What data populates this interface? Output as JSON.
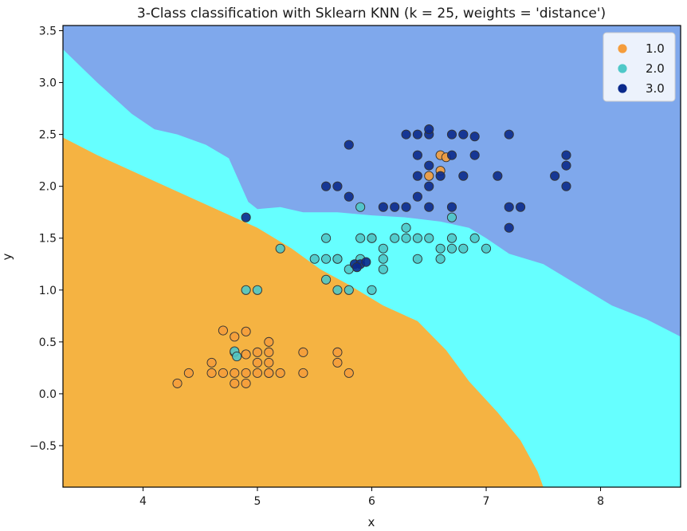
{
  "chart_data": {
    "type": "scatter",
    "title": "3-Class classification with Sklearn KNN (k = 25, weights = 'distance')",
    "xlabel": "x",
    "ylabel": "y",
    "xlim": [
      3.3,
      8.7
    ],
    "ylim": [
      -0.9,
      3.55
    ],
    "xticks": [
      4,
      5,
      6,
      7,
      8
    ],
    "yticks": [
      -0.5,
      0.0,
      0.5,
      1.0,
      1.5,
      2.0,
      2.5,
      3.0,
      3.5
    ],
    "xtick_labels": [
      "4",
      "5",
      "6",
      "7",
      "8"
    ],
    "ytick_labels": [
      "−0.5",
      "0.0",
      "0.5",
      "1.0",
      "1.5",
      "2.0",
      "2.5",
      "3.0",
      "3.5"
    ],
    "grid": false,
    "legend_position": "top-right",
    "regions": [
      {
        "class": "1.0",
        "color": "#f5b342"
      },
      {
        "class": "2.0",
        "color": "#66ffff"
      },
      {
        "class": "3.0",
        "color": "#7fa8ec"
      }
    ],
    "boundary_1_2": [
      [
        3.3,
        2.47
      ],
      [
        3.6,
        2.3
      ],
      [
        4.0,
        2.1
      ],
      [
        4.5,
        1.85
      ],
      [
        5.0,
        1.6
      ],
      [
        5.3,
        1.4
      ],
      [
        5.55,
        1.2
      ],
      [
        5.8,
        1.05
      ],
      [
        6.1,
        0.85
      ],
      [
        6.4,
        0.7
      ],
      [
        6.65,
        0.42
      ],
      [
        6.85,
        0.12
      ],
      [
        7.1,
        -0.18
      ],
      [
        7.3,
        -0.45
      ],
      [
        7.45,
        -0.75
      ],
      [
        7.5,
        -0.9
      ]
    ],
    "boundary_2_3": [
      [
        3.3,
        3.32
      ],
      [
        3.6,
        3.0
      ],
      [
        3.9,
        2.7
      ],
      [
        4.1,
        2.55
      ],
      [
        4.3,
        2.5
      ],
      [
        4.55,
        2.4
      ],
      [
        4.75,
        2.27
      ],
      [
        4.92,
        1.85
      ],
      [
        5.0,
        1.78
      ],
      [
        5.2,
        1.8
      ],
      [
        5.4,
        1.75
      ],
      [
        5.7,
        1.75
      ],
      [
        6.0,
        1.72
      ],
      [
        6.3,
        1.7
      ],
      [
        6.6,
        1.66
      ],
      [
        6.85,
        1.6
      ],
      [
        7.0,
        1.5
      ],
      [
        7.2,
        1.35
      ],
      [
        7.5,
        1.25
      ],
      [
        7.8,
        1.05
      ],
      [
        8.1,
        0.85
      ],
      [
        8.4,
        0.72
      ],
      [
        8.7,
        0.55
      ]
    ],
    "series": [
      {
        "name": "1.0",
        "color": "#f59d3c",
        "x": [
          4.3,
          4.4,
          4.6,
          4.6,
          4.7,
          4.7,
          4.8,
          4.8,
          4.8,
          4.8,
          4.9,
          4.9,
          4.9,
          5.0,
          5.0,
          5.0,
          5.1,
          5.1,
          5.1,
          5.1,
          5.1,
          5.2,
          5.4,
          5.4,
          5.7,
          5.7,
          5.8,
          4.9,
          6.5,
          6.6,
          6.65,
          6.6
        ],
        "y": [
          0.1,
          0.2,
          0.2,
          0.3,
          0.2,
          0.61,
          0.1,
          0.2,
          0.4,
          0.55,
          0.1,
          0.2,
          0.6,
          0.2,
          0.3,
          0.4,
          0.2,
          0.3,
          0.4,
          0.5,
          0.2,
          0.2,
          0.2,
          0.4,
          0.3,
          0.4,
          0.2,
          0.38,
          2.1,
          2.3,
          2.28,
          2.15
        ]
      },
      {
        "name": "2.0",
        "color": "#4fc8c8",
        "x": [
          4.9,
          5.0,
          5.2,
          5.5,
          5.6,
          5.6,
          5.6,
          5.7,
          5.7,
          5.7,
          5.8,
          5.8,
          5.9,
          5.9,
          5.9,
          6.0,
          6.0,
          6.0,
          6.1,
          6.1,
          6.1,
          6.2,
          6.3,
          6.3,
          6.4,
          6.4,
          6.5,
          6.6,
          6.6,
          6.7,
          6.7,
          6.8,
          6.9,
          7.0,
          6.7,
          4.8,
          4.82
        ],
        "y": [
          1.0,
          1.0,
          1.4,
          1.3,
          1.1,
          1.3,
          1.5,
          1.0,
          1.3,
          1.3,
          1.0,
          1.2,
          1.5,
          1.8,
          1.3,
          1.5,
          1.0,
          1.5,
          1.3,
          1.4,
          1.2,
          1.5,
          1.5,
          1.6,
          1.3,
          1.5,
          1.5,
          1.3,
          1.4,
          1.4,
          1.7,
          1.4,
          1.5,
          1.4,
          1.5,
          0.41,
          0.36
        ]
      },
      {
        "name": "3.0",
        "color": "#0b2a8c",
        "x": [
          4.9,
          5.6,
          5.7,
          5.8,
          5.8,
          5.85,
          5.9,
          5.95,
          6.1,
          6.2,
          6.3,
          6.3,
          6.4,
          6.4,
          6.4,
          6.4,
          6.5,
          6.5,
          6.5,
          6.5,
          6.5,
          6.6,
          6.7,
          6.7,
          6.7,
          6.8,
          6.8,
          6.9,
          6.9,
          7.1,
          7.2,
          7.2,
          7.2,
          7.3,
          7.6,
          7.7,
          7.7,
          7.7,
          5.87
        ],
        "y": [
          1.7,
          2.0,
          2.0,
          2.4,
          1.9,
          1.25,
          1.25,
          1.27,
          1.8,
          1.8,
          1.8,
          2.5,
          1.9,
          2.1,
          2.3,
          2.5,
          1.8,
          2.0,
          2.2,
          2.5,
          2.55,
          2.1,
          1.8,
          2.3,
          2.5,
          2.1,
          2.5,
          2.3,
          2.48,
          2.1,
          1.8,
          1.6,
          2.5,
          1.8,
          2.1,
          2.3,
          2.2,
          2.0,
          1.22
        ]
      }
    ]
  }
}
